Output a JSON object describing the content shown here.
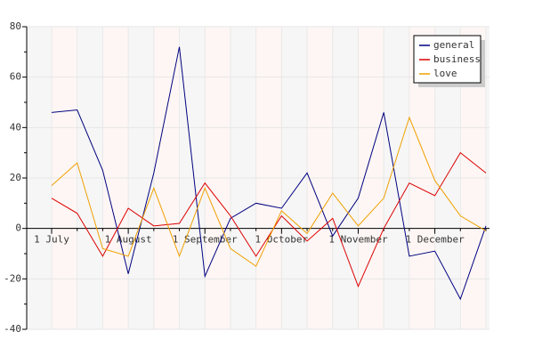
{
  "chart_data": {
    "type": "line",
    "categories": [
      "1 July",
      null,
      null,
      "1 August",
      null,
      null,
      "1 September",
      null,
      null,
      "1 October",
      null,
      null,
      "1 November",
      null,
      null,
      "1 December",
      null,
      null
    ],
    "series": [
      {
        "name": "general",
        "color": "#000080",
        "values": [
          46,
          47,
          23,
          -18,
          22,
          72,
          -19,
          4,
          10,
          8,
          22,
          -3,
          12,
          46,
          -11,
          -9,
          -28,
          1
        ]
      },
      {
        "name": "business",
        "color": "#dd0000",
        "values": [
          12,
          6,
          -11,
          8,
          1,
          2,
          18,
          5,
          -11,
          5,
          -5,
          4,
          -23,
          0,
          18,
          13,
          30,
          22
        ]
      },
      {
        "name": "love",
        "color": "#f0a000",
        "values": [
          17,
          26,
          -8,
          -11,
          16,
          -11,
          16,
          -8,
          -15,
          7,
          -2,
          14,
          1,
          12,
          44,
          19,
          5,
          -1
        ]
      }
    ],
    "ylim": [
      -40,
      80
    ],
    "yticks": [
      -40,
      -20,
      0,
      20,
      40,
      60,
      80
    ],
    "grid": true,
    "legend": "upper right"
  }
}
